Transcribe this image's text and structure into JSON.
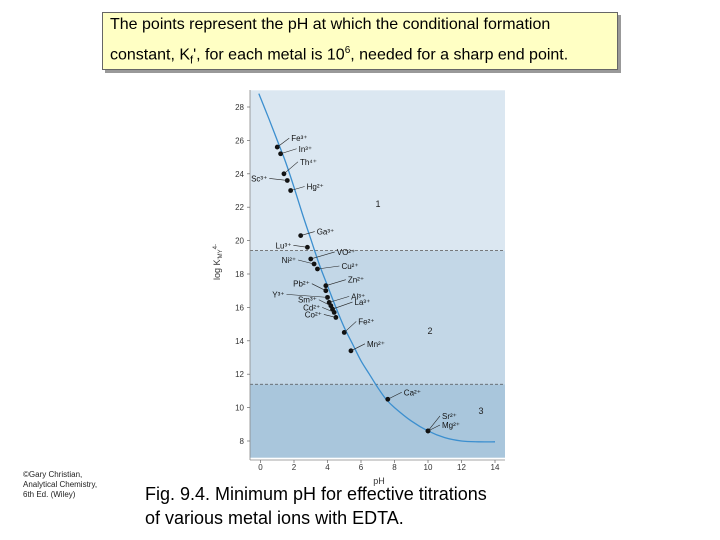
{
  "callout": {
    "line1": "The points represent the pH at which the conditional formation",
    "line2_pre": "constant, K",
    "line2_sub": "f",
    "line2_mid": "', for each metal is 10",
    "line2_sup": "6",
    "line2_post": ", needed for a sharp end point."
  },
  "copyright": "©Gary Christian,\nAnalytical Chemistry,\n6th Ed. (Wiley)",
  "caption": {
    "line1": "Fig. 9.4.  Minimum pH for effective titrations",
    "line2": "of  various metal ions with EDTA."
  },
  "colors": {
    "region1": "#dbe7f1",
    "region2": "#c3d7e7",
    "region3": "#a9c6dc",
    "curve": "#3c8fcf",
    "points": "#111111",
    "callout_bg": "#ffffc4"
  },
  "chart_data": {
    "type": "line",
    "xlabel": "pH",
    "ylabel": "log K'MY^4-",
    "xlim": [
      -1.5,
      14.5
    ],
    "ylim": [
      7,
      29
    ],
    "xticks": [
      "0",
      "2",
      "4",
      "6",
      "8",
      "10",
      "12",
      "14"
    ],
    "yticks": [
      "8",
      "10",
      "12",
      "14",
      "16",
      "18",
      "20",
      "22",
      "24",
      "26",
      "28"
    ],
    "regions": [
      {
        "label": "1",
        "from_y": 19.4,
        "to_y": 29
      },
      {
        "label": "2",
        "from_y": 11.4,
        "to_y": 19.4
      },
      {
        "label": "3",
        "from_y": 7,
        "to_y": 11.4
      }
    ],
    "curve": [
      [
        -0.1,
        28.8
      ],
      [
        0.5,
        27.3
      ],
      [
        1.0,
        26.0
      ],
      [
        1.5,
        24.7
      ],
      [
        2.0,
        23.2
      ],
      [
        2.5,
        21.6
      ],
      [
        3.0,
        20.1
      ],
      [
        3.5,
        18.6
      ],
      [
        4.0,
        17.3
      ],
      [
        4.5,
        16.0
      ],
      [
        5.0,
        14.8
      ],
      [
        5.5,
        13.8
      ],
      [
        6.0,
        12.8
      ],
      [
        6.5,
        12.0
      ],
      [
        7.0,
        11.2
      ],
      [
        7.5,
        10.5
      ],
      [
        8.0,
        10.0
      ],
      [
        9.0,
        9.2
      ],
      [
        10.0,
        8.6
      ],
      [
        11.0,
        8.2
      ],
      [
        12.0,
        8.0
      ],
      [
        13.0,
        7.95
      ],
      [
        14.0,
        7.95
      ]
    ],
    "points": [
      {
        "label": "Fe³⁺",
        "x": 1.0,
        "y": 25.6
      },
      {
        "label": "In³⁺",
        "x": 1.2,
        "y": 25.2
      },
      {
        "label": "Th⁴⁺",
        "x": 1.4,
        "y": 24.0
      },
      {
        "label": "Sc³⁺",
        "x": 1.6,
        "y": 23.6
      },
      {
        "label": "Hg²⁺",
        "x": 1.8,
        "y": 23.0
      },
      {
        "label": "Ga³⁺",
        "x": 2.4,
        "y": 20.3
      },
      {
        "label": "Lu³⁺",
        "x": 2.8,
        "y": 19.6
      },
      {
        "label": "VO²⁺",
        "x": 3.0,
        "y": 18.9
      },
      {
        "label": "Ni²⁺",
        "x": 3.2,
        "y": 18.6
      },
      {
        "label": "Cu²⁺",
        "x": 3.4,
        "y": 18.3
      },
      {
        "label": "Zn²⁺",
        "x": 3.9,
        "y": 17.3
      },
      {
        "label": "Pb²⁺",
        "x": 3.9,
        "y": 17.0
      },
      {
        "label": "Y³⁺",
        "x": 4.0,
        "y": 16.6
      },
      {
        "label": "Al³⁺",
        "x": 4.1,
        "y": 16.3
      },
      {
        "label": "Sm³⁺",
        "x": 4.2,
        "y": 16.1
      },
      {
        "label": "La³⁺",
        "x": 4.3,
        "y": 15.9
      },
      {
        "label": "Cd²⁺",
        "x": 4.4,
        "y": 15.7
      },
      {
        "label": "Co²⁺",
        "x": 4.5,
        "y": 15.4
      },
      {
        "label": "Fe²⁺",
        "x": 5.0,
        "y": 14.5
      },
      {
        "label": "Mn²⁺",
        "x": 5.4,
        "y": 13.4
      },
      {
        "label": "Ca²⁺",
        "x": 7.6,
        "y": 10.5
      },
      {
        "label": "Sr²⁺",
        "x": 10.0,
        "y": 8.6
      },
      {
        "label": "Mg²⁺",
        "x": 10.0,
        "y": 8.6
      }
    ]
  }
}
